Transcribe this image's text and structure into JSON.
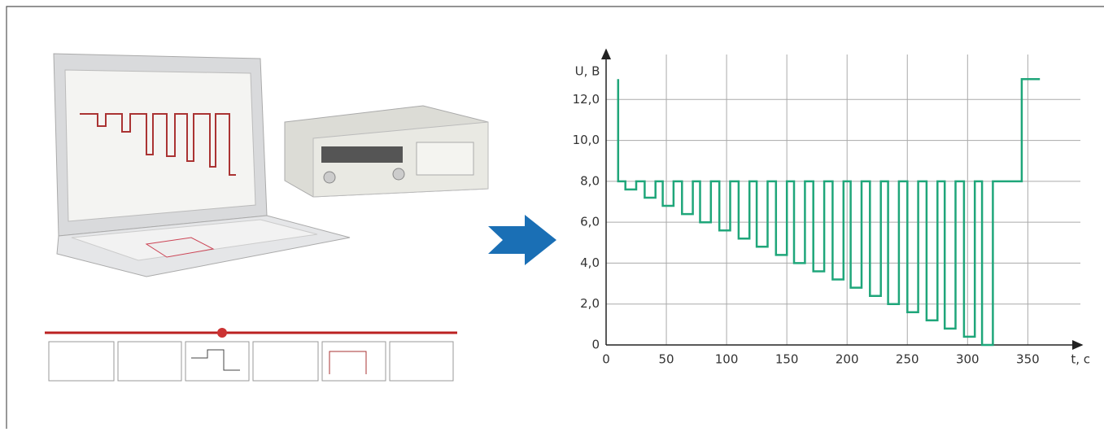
{
  "chart_data": {
    "type": "line",
    "x_label": "t, c",
    "y_label": "U, B",
    "color": "#1fa67a",
    "grid": true,
    "xlim": [
      0,
      395
    ],
    "ylim": [
      0,
      14.2
    ],
    "xticks": [
      0,
      50,
      100,
      150,
      200,
      250,
      300,
      350
    ],
    "yticks": [
      0,
      {
        "value": 2,
        "label": "2,0"
      },
      {
        "value": 4,
        "label": "4,0"
      },
      {
        "value": 6,
        "label": "6,0"
      },
      {
        "value": 8,
        "label": "8,0"
      },
      {
        "value": 10,
        "label": "10,0"
      },
      {
        "value": 12,
        "label": "12,0"
      }
    ],
    "x": [
      10,
      10,
      16,
      16,
      25,
      25,
      32,
      32,
      41,
      41,
      47,
      47,
      56,
      56,
      63,
      63,
      72,
      72,
      78,
      78,
      87,
      87,
      94,
      94,
      103,
      103,
      110,
      110,
      119,
      119,
      125,
      125,
      134,
      134,
      141,
      141,
      150,
      150,
      156,
      156,
      165,
      165,
      172,
      172,
      181,
      181,
      188,
      188,
      197,
      197,
      203,
      203,
      212,
      212,
      219,
      219,
      228,
      228,
      234,
      234,
      243,
      243,
      250,
      250,
      259,
      259,
      266,
      266,
      275,
      275,
      281,
      281,
      290,
      290,
      297,
      297,
      306,
      306,
      312,
      312,
      321,
      321,
      345,
      345,
      360
    ],
    "values": [
      13,
      8,
      8,
      7.6,
      7.6,
      8,
      8,
      7.2,
      7.2,
      8,
      8,
      6.8,
      6.8,
      8,
      8,
      6.4,
      6.4,
      8,
      8,
      6,
      6,
      8,
      8,
      5.6,
      5.6,
      8,
      8,
      5.2,
      5.2,
      8,
      8,
      4.8,
      4.8,
      8,
      8,
      4.4,
      4.4,
      8,
      8,
      4,
      4,
      8,
      8,
      3.6,
      3.6,
      8,
      8,
      3.2,
      3.2,
      8,
      8,
      2.8,
      2.8,
      8,
      8,
      2.4,
      2.4,
      8,
      8,
      2,
      2,
      8,
      8,
      1.6,
      1.6,
      8,
      8,
      1.2,
      1.2,
      8,
      8,
      0.8,
      0.8,
      8,
      8,
      0.4,
      0.4,
      8,
      8,
      0,
      0,
      8,
      8,
      13,
      13
    ]
  }
}
